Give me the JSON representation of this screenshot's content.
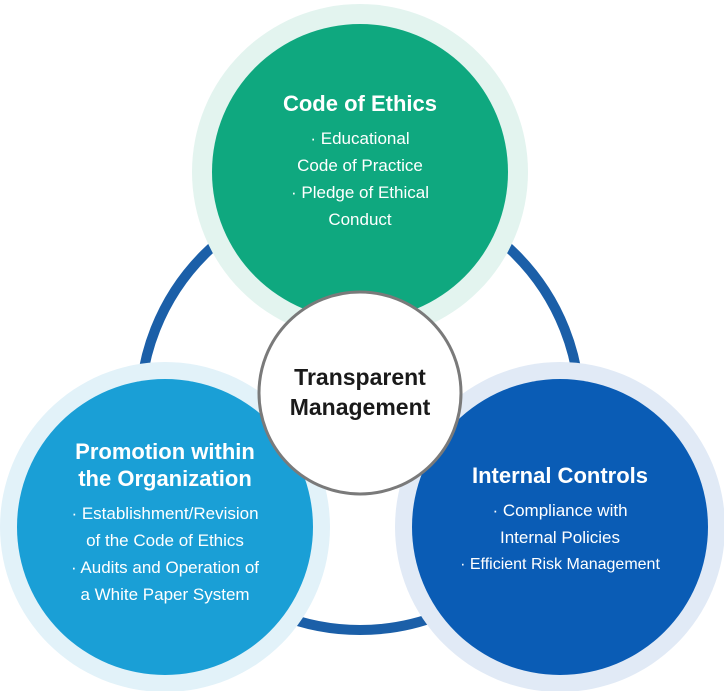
{
  "center": {
    "line1": "Transparent",
    "line2": "Management"
  },
  "top": {
    "title": "Code of Ethics",
    "bullets": [
      [
        "· Educational",
        "Code of Practice"
      ],
      [
        "· Pledge of Ethical",
        "Conduct"
      ]
    ]
  },
  "left": {
    "title_lines": [
      "Promotion within",
      "the Organization"
    ],
    "bullets": [
      [
        "· Establishment/Revision",
        "of the Code of Ethics"
      ],
      [
        "· Audits and Operation of",
        "a White Paper System"
      ]
    ]
  },
  "right": {
    "title": "Internal Controls",
    "bullets": [
      [
        "· Compliance with",
        "Internal Policies"
      ],
      [
        "· Efficient Risk Management"
      ]
    ]
  },
  "colors": {
    "ring": "#1b5fa8",
    "top_fill": "#0fa87f",
    "top_halo": "#e3f4ef",
    "left_fill": "#1a9fd6",
    "left_halo": "#e2f2f9",
    "right_fill": "#0a5cb5",
    "right_halo": "#e1eaf6",
    "center_border": "#7a7a7a"
  }
}
